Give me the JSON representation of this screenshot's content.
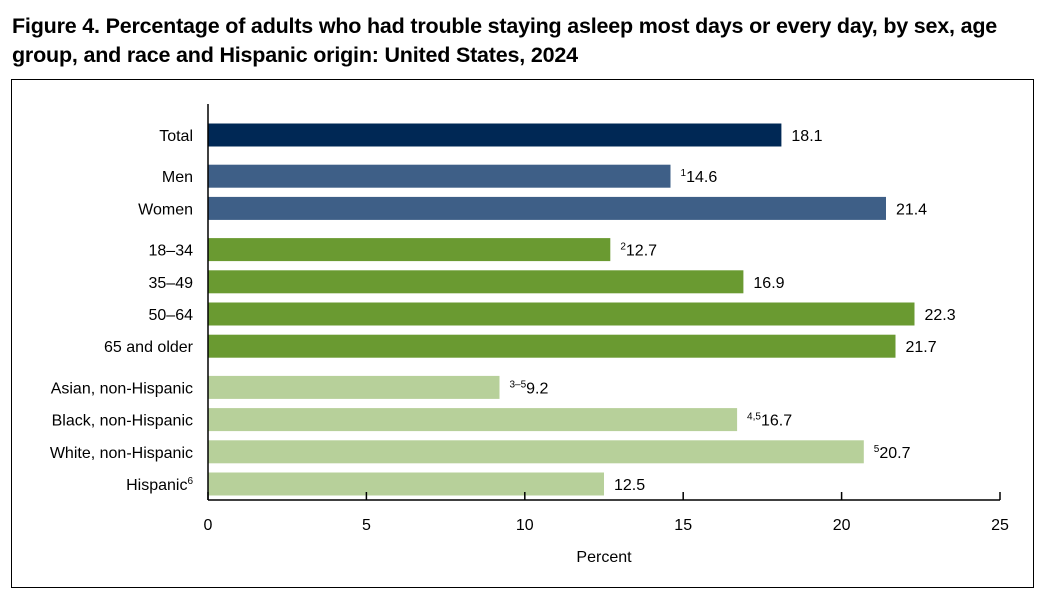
{
  "title": "Figure 4. Percentage of adults who had trouble staying asleep most days or every day, by sex, age group, and race and Hispanic origin: United States, 2024",
  "chart_data": {
    "type": "bar",
    "orientation": "horizontal",
    "title": "Figure 4. Percentage of adults who had trouble staying asleep most days or every day, by sex, age group, and race and Hispanic origin: United States, 2024",
    "xlabel": "Percent",
    "ylabel": "",
    "xlim": [
      0,
      25
    ],
    "xticks": [
      0,
      5,
      10,
      15,
      20,
      25
    ],
    "grid": false,
    "legend": "none",
    "colors": {
      "total": "#002855",
      "sex": "#3e5f87",
      "age": "#6a9a31",
      "race": "#b7d09a"
    },
    "groups": [
      {
        "key": "total",
        "bars": [
          {
            "label": "Total",
            "value": 18.1,
            "label_sup": "",
            "value_sup": ""
          }
        ]
      },
      {
        "key": "sex",
        "bars": [
          {
            "label": "Men",
            "value": 14.6,
            "label_sup": "",
            "value_sup": "1"
          },
          {
            "label": "Women",
            "value": 21.4,
            "label_sup": "",
            "value_sup": ""
          }
        ]
      },
      {
        "key": "age",
        "bars": [
          {
            "label": "18–34",
            "value": 12.7,
            "label_sup": "",
            "value_sup": "2"
          },
          {
            "label": "35–49",
            "value": 16.9,
            "label_sup": "",
            "value_sup": ""
          },
          {
            "label": "50–64",
            "value": 22.3,
            "label_sup": "",
            "value_sup": ""
          },
          {
            "label": "65 and older",
            "value": 21.7,
            "label_sup": "",
            "value_sup": ""
          }
        ]
      },
      {
        "key": "race",
        "bars": [
          {
            "label": "Asian, non-Hispanic",
            "value": 9.2,
            "label_sup": "",
            "value_sup": "3–5"
          },
          {
            "label": "Black, non-Hispanic",
            "value": 16.7,
            "label_sup": "",
            "value_sup": "4,5"
          },
          {
            "label": "White, non-Hispanic",
            "value": 20.7,
            "label_sup": "",
            "value_sup": "5"
          },
          {
            "label": "Hispanic",
            "value": 12.5,
            "label_sup": "6",
            "value_sup": ""
          }
        ]
      }
    ]
  }
}
